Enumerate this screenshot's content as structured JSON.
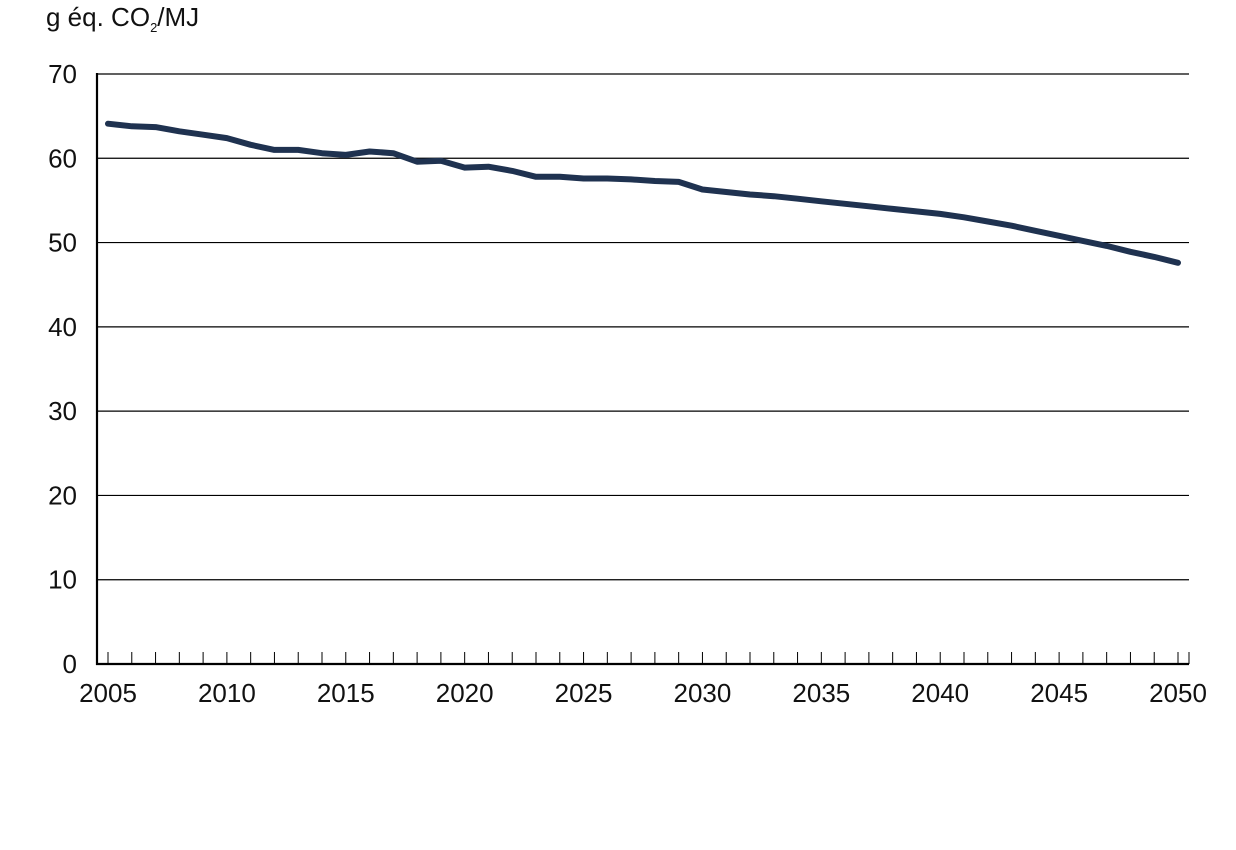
{
  "unit_label": {
    "prefix": "g éq. CO",
    "subscript": "2",
    "suffix": "/MJ"
  },
  "colors": {
    "line": "#1f3250",
    "grid": "#000000",
    "text": "#111111"
  },
  "chart_data": {
    "type": "line",
    "title": "",
    "xlabel": "",
    "ylabel": "g éq. CO2/MJ",
    "xlim": [
      2005,
      2050
    ],
    "ylim": [
      0,
      70
    ],
    "x_ticks": [
      2005,
      2010,
      2015,
      2020,
      2025,
      2030,
      2035,
      2040,
      2045,
      2050
    ],
    "y_ticks": [
      0,
      10,
      20,
      30,
      40,
      50,
      60,
      70
    ],
    "grid": true,
    "legend": "none",
    "series": [
      {
        "x": [
          2005,
          2006,
          2007,
          2008,
          2009,
          2010,
          2011,
          2012,
          2013,
          2014,
          2015,
          2016,
          2017,
          2018,
          2019,
          2020,
          2021,
          2022,
          2023,
          2024,
          2025,
          2026,
          2027,
          2028,
          2029,
          2030,
          2031,
          2032,
          2033,
          2034,
          2035,
          2036,
          2037,
          2038,
          2039,
          2040,
          2041,
          2042,
          2043,
          2044,
          2045,
          2046,
          2047,
          2048,
          2049,
          2050
        ],
        "values": [
          64.1,
          63.8,
          63.7,
          63.2,
          62.8,
          62.4,
          61.6,
          61.0,
          61.0,
          60.6,
          60.4,
          60.8,
          60.6,
          59.6,
          59.7,
          58.9,
          59.0,
          58.5,
          57.8,
          57.8,
          57.6,
          57.6,
          57.5,
          57.3,
          57.2,
          56.3,
          56.0,
          55.7,
          55.5,
          55.2,
          54.9,
          54.6,
          54.3,
          54.0,
          53.7,
          53.4,
          53.0,
          52.5,
          52.0,
          51.4,
          50.8,
          50.2,
          49.6,
          48.9,
          48.3,
          47.6
        ]
      }
    ]
  }
}
